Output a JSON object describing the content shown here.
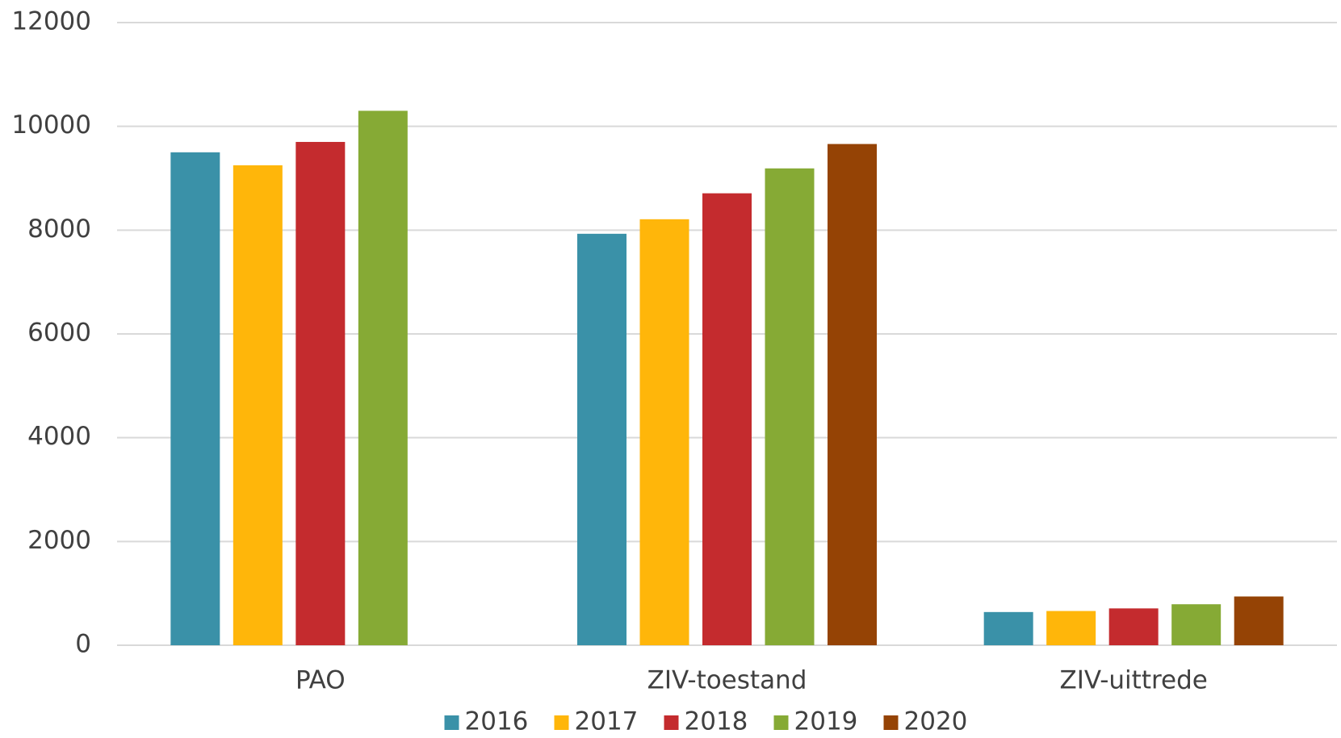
{
  "chart_data": {
    "type": "bar",
    "categories": [
      "PAO",
      "ZIV-toestand",
      "ZIV-uittrede"
    ],
    "series": [
      {
        "name": "2016",
        "color": "#3a91a8",
        "values": [
          9500,
          7930,
          640
        ]
      },
      {
        "name": "2017",
        "color": "#ffb60a",
        "values": [
          9250,
          8210,
          660
        ]
      },
      {
        "name": "2018",
        "color": "#c42b2e",
        "values": [
          9700,
          8710,
          710
        ]
      },
      {
        "name": "2019",
        "color": "#86aa35",
        "values": [
          10300,
          9190,
          790
        ]
      },
      {
        "name": "2020",
        "color": "#954305",
        "values": [
          null,
          9660,
          940
        ]
      }
    ],
    "ylim": [
      0,
      12000
    ],
    "yticks": [
      0,
      2000,
      4000,
      6000,
      8000,
      10000,
      12000
    ],
    "grid": true,
    "legend": "bottom"
  }
}
